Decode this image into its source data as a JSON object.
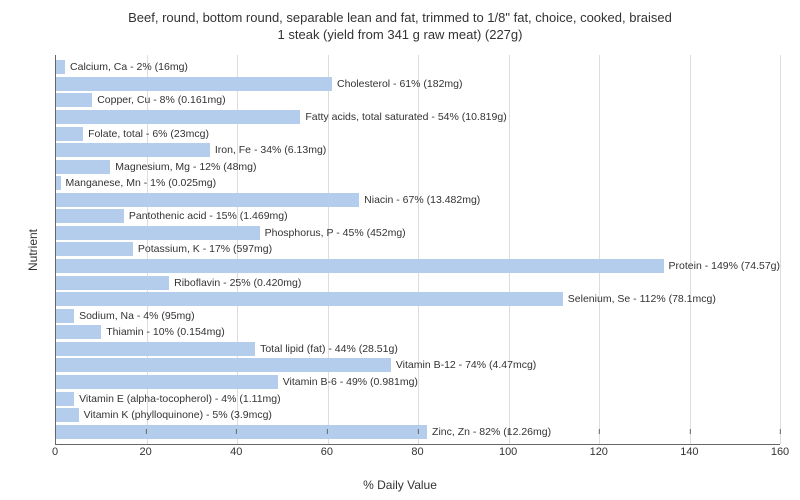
{
  "chart": {
    "type": "bar",
    "title_line1": "Beef, round, bottom round, separable lean and fat, trimmed to 1/8\" fat, choice, cooked, braised",
    "title_line2": "1 steak (yield from 341 g raw meat) (227g)",
    "title_fontsize": 13,
    "x_label": "% Daily Value",
    "y_label": "Nutrient",
    "label_fontsize": 12,
    "tick_fontsize": 11,
    "bar_label_fontsize": 10.5,
    "bar_color": "#b5cdec",
    "grid_color": "#dddddd",
    "axis_color": "#666666",
    "text_color": "#333333",
    "background_color": "#ffffff",
    "xlim": [
      0,
      160
    ],
    "xtick_step": 20,
    "xticks": [
      0,
      20,
      40,
      60,
      80,
      100,
      120,
      140,
      160
    ],
    "bars": [
      {
        "label": "Calcium, Ca - 2% (16mg)",
        "value": 2
      },
      {
        "label": "Cholesterol - 61% (182mg)",
        "value": 61
      },
      {
        "label": "Copper, Cu - 8% (0.161mg)",
        "value": 8
      },
      {
        "label": "Fatty acids, total saturated - 54% (10.819g)",
        "value": 54
      },
      {
        "label": "Folate, total - 6% (23mcg)",
        "value": 6
      },
      {
        "label": "Iron, Fe - 34% (6.13mg)",
        "value": 34
      },
      {
        "label": "Magnesium, Mg - 12% (48mg)",
        "value": 12
      },
      {
        "label": "Manganese, Mn - 1% (0.025mg)",
        "value": 1
      },
      {
        "label": "Niacin - 67% (13.482mg)",
        "value": 67
      },
      {
        "label": "Pantothenic acid - 15% (1.469mg)",
        "value": 15
      },
      {
        "label": "Phosphorus, P - 45% (452mg)",
        "value": 45
      },
      {
        "label": "Potassium, K - 17% (597mg)",
        "value": 17
      },
      {
        "label": "Protein - 149% (74.57g)",
        "value": 149
      },
      {
        "label": "Riboflavin - 25% (0.420mg)",
        "value": 25
      },
      {
        "label": "Selenium, Se - 112% (78.1mcg)",
        "value": 112
      },
      {
        "label": "Sodium, Na - 4% (95mg)",
        "value": 4
      },
      {
        "label": "Thiamin - 10% (0.154mg)",
        "value": 10
      },
      {
        "label": "Total lipid (fat) - 44% (28.51g)",
        "value": 44
      },
      {
        "label": "Vitamin B-12 - 74% (4.47mcg)",
        "value": 74
      },
      {
        "label": "Vitamin B-6 - 49% (0.981mg)",
        "value": 49
      },
      {
        "label": "Vitamin E (alpha-tocopherol) - 4% (1.11mg)",
        "value": 4
      },
      {
        "label": "Vitamin K (phylloquinone) - 5% (3.9mcg)",
        "value": 5
      },
      {
        "label": "Zinc, Zn - 82% (12.26mg)",
        "value": 82
      }
    ]
  }
}
